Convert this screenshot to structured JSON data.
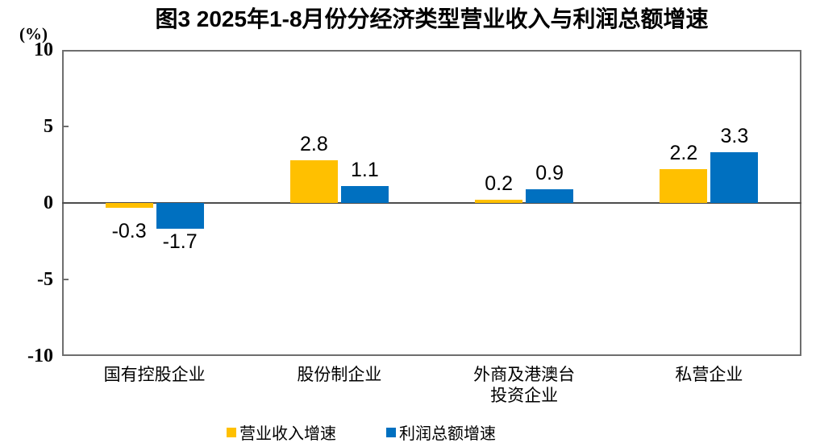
{
  "title": "图3 2025年1-8月份分经济类型营业收入与利润总额增速",
  "y_axis_unit": "(%)",
  "chart_data": {
    "type": "bar",
    "categories": [
      "国有控股企业",
      "股份制企业",
      "外商及港澳台\n投资企业",
      "私营企业"
    ],
    "series": [
      {
        "name": "营业收入增速",
        "color": "#FFC000",
        "values": [
          -0.3,
          2.8,
          0.2,
          2.2
        ]
      },
      {
        "name": "利润总额增速",
        "color": "#0070C0",
        "values": [
          -1.7,
          1.1,
          0.9,
          3.3
        ]
      }
    ],
    "ylim": [
      -10,
      10
    ],
    "yticks": [
      10,
      5,
      0,
      -5,
      -10
    ],
    "grid": false,
    "legend_position": "bottom",
    "colors": {
      "axis": "#6e6e6e",
      "zero_line": "#4d4d4d",
      "text": "#000000"
    }
  }
}
